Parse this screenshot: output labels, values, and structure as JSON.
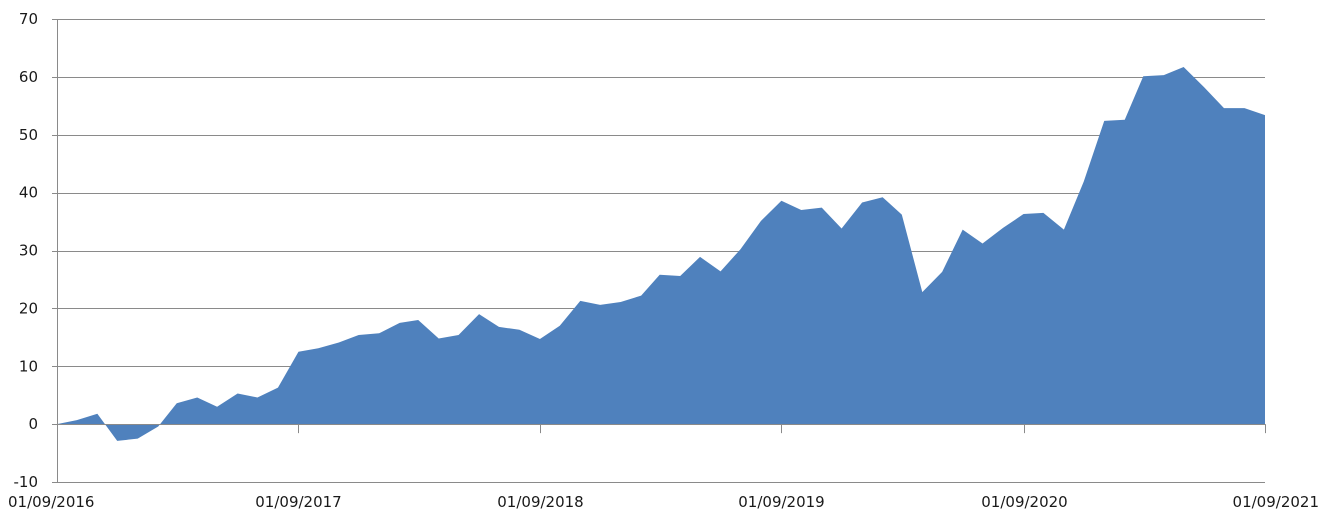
{
  "chart_data": {
    "type": "area",
    "title": "",
    "xlabel": "",
    "ylabel": "",
    "ylim": [
      -10,
      70
    ],
    "yticks": [
      -10,
      0,
      10,
      20,
      30,
      40,
      50,
      60,
      70
    ],
    "xlim": [
      "01/09/2016",
      "01/09/2021"
    ],
    "xtick_labels": [
      "01/09/2016",
      "01/09/2017",
      "01/09/2018",
      "01/09/2019",
      "01/09/2020",
      "01/09/2021"
    ],
    "grid": "horizontal",
    "legend": "none",
    "color": "#4f81bd",
    "series": [
      {
        "x": [
          "01/09/2016",
          "01/10/2016",
          "01/11/2016",
          "01/12/2016",
          "01/01/2017",
          "01/02/2017",
          "01/03/2017",
          "01/04/2017",
          "01/05/2017",
          "01/06/2017",
          "01/07/2017",
          "01/08/2017",
          "01/09/2017",
          "01/10/2017",
          "01/11/2017",
          "01/12/2017",
          "01/01/2018",
          "01/02/2018",
          "01/03/2018",
          "01/04/2018",
          "01/05/2018",
          "01/06/2018",
          "01/07/2018",
          "01/08/2018",
          "01/09/2018",
          "01/10/2018",
          "01/11/2018",
          "01/12/2018",
          "01/01/2019",
          "01/02/2019",
          "01/03/2019",
          "01/04/2019",
          "01/05/2019",
          "01/06/2019",
          "01/07/2019",
          "01/08/2019",
          "01/09/2019",
          "01/10/2019",
          "01/11/2019",
          "01/12/2019",
          "01/01/2020",
          "01/02/2020",
          "01/03/2020",
          "01/04/2020",
          "01/05/2020",
          "01/06/2020",
          "01/07/2020",
          "01/08/2020",
          "01/09/2020",
          "01/10/2020",
          "01/11/2020",
          "01/12/2020",
          "01/01/2021",
          "01/02/2021",
          "01/03/2021",
          "01/04/2021",
          "01/05/2021",
          "01/06/2021",
          "01/07/2021",
          "01/08/2021",
          "01/09/2021"
        ],
        "values": [
          0,
          0.7,
          1.8,
          -2.9,
          -2.5,
          -0.4,
          3.6,
          4.6,
          3.0,
          5.3,
          4.6,
          6.3,
          12.5,
          13.1,
          14.1,
          15.4,
          15.7,
          17.5,
          18.0,
          14.8,
          15.4,
          19.0,
          16.8,
          16.3,
          14.7,
          17.0,
          21.3,
          20.6,
          21.1,
          22.2,
          25.8,
          25.6,
          28.9,
          26.4,
          30.2,
          35.1,
          38.6,
          37.0,
          37.4,
          33.8,
          38.3,
          39.2,
          36.2,
          22.8,
          26.3,
          33.6,
          31.2,
          33.9,
          36.3,
          36.5,
          33.6,
          41.9,
          52.4,
          52.6,
          60.1,
          60.3,
          61.7,
          58.2,
          54.6,
          54.6,
          53.4
        ]
      }
    ]
  }
}
